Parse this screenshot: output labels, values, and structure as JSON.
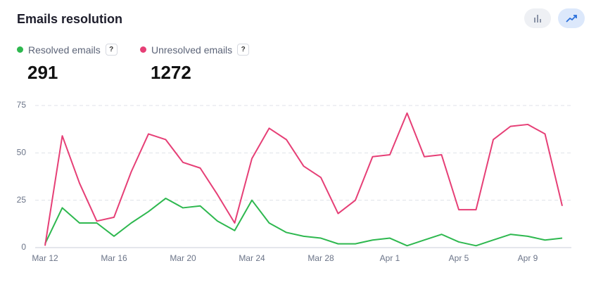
{
  "chart_data": {
    "type": "line",
    "title": "Emails resolution",
    "help_label": "?",
    "categories": [
      "Mar 12",
      null,
      null,
      null,
      "Mar 16",
      null,
      null,
      null,
      "Mar 20",
      null,
      null,
      null,
      "Mar 24",
      null,
      null,
      null,
      "Mar 28",
      null,
      null,
      null,
      "Apr 1",
      null,
      null,
      null,
      "Apr 5",
      null,
      null,
      null,
      "Apr 9",
      null,
      null
    ],
    "series": [
      {
        "name": "Resolved emails",
        "color": "#2eb84f",
        "total": 291,
        "values": [
          2,
          21,
          13,
          13,
          6,
          13,
          19,
          26,
          21,
          22,
          14,
          9,
          25,
          13,
          8,
          6,
          5,
          2,
          2,
          4,
          5,
          1,
          4,
          7,
          3,
          1,
          4,
          7,
          6,
          4,
          5
        ]
      },
      {
        "name": "Unresolved emails",
        "color": "#e63f76",
        "total": 1272,
        "values": [
          1,
          59,
          34,
          14,
          16,
          40,
          60,
          57,
          45,
          42,
          28,
          13,
          47,
          63,
          57,
          43,
          37,
          18,
          25,
          48,
          49,
          71,
          48,
          49,
          20,
          20,
          57,
          64,
          65,
          60,
          22
        ]
      }
    ],
    "ylim": [
      0,
      75
    ],
    "yticks": [
      0,
      25,
      50,
      75
    ],
    "grid": true
  }
}
